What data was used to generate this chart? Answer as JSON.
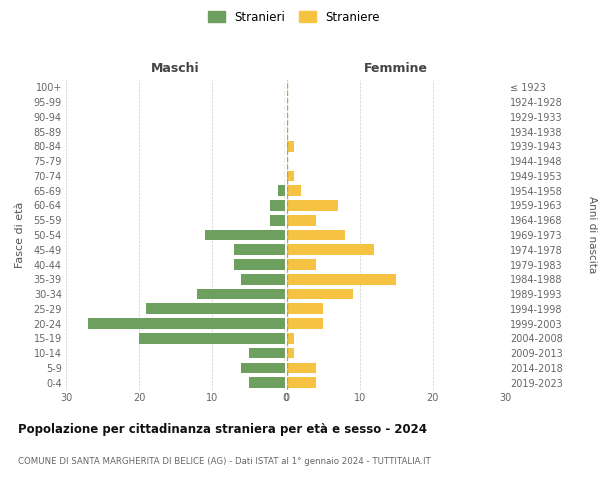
{
  "age_groups": [
    "0-4",
    "5-9",
    "10-14",
    "15-19",
    "20-24",
    "25-29",
    "30-34",
    "35-39",
    "40-44",
    "45-49",
    "50-54",
    "55-59",
    "60-64",
    "65-69",
    "70-74",
    "75-79",
    "80-84",
    "85-89",
    "90-94",
    "95-99",
    "100+"
  ],
  "birth_years": [
    "2019-2023",
    "2014-2018",
    "2009-2013",
    "2004-2008",
    "1999-2003",
    "1994-1998",
    "1989-1993",
    "1984-1988",
    "1979-1983",
    "1974-1978",
    "1969-1973",
    "1964-1968",
    "1959-1963",
    "1954-1958",
    "1949-1953",
    "1944-1948",
    "1939-1943",
    "1934-1938",
    "1929-1933",
    "1924-1928",
    "≤ 1923"
  ],
  "maschi": [
    5,
    6,
    5,
    20,
    27,
    19,
    12,
    6,
    7,
    7,
    11,
    2,
    2,
    1,
    0,
    0,
    0,
    0,
    0,
    0,
    0
  ],
  "femmine": [
    4,
    4,
    1,
    1,
    5,
    5,
    9,
    15,
    4,
    12,
    8,
    4,
    7,
    2,
    1,
    0,
    1,
    0,
    0,
    0,
    0
  ],
  "male_color": "#6d9f5e",
  "female_color": "#f5c242",
  "background_color": "#ffffff",
  "grid_color": "#cccccc",
  "title": "Popolazione per cittadinanza straniera per età e sesso - 2024",
  "subtitle": "COMUNE DI SANTA MARGHERITA DI BELICE (AG) - Dati ISTAT al 1° gennaio 2024 - TUTTITALIA.IT",
  "ylabel_left": "Fasce di età",
  "ylabel_right": "Anni di nascita",
  "xlabel_left": "Maschi",
  "xlabel_right": "Femmine",
  "legend_male": "Stranieri",
  "legend_female": "Straniere",
  "xlim": 30,
  "figsize": [
    6.0,
    5.0
  ],
  "dpi": 100
}
